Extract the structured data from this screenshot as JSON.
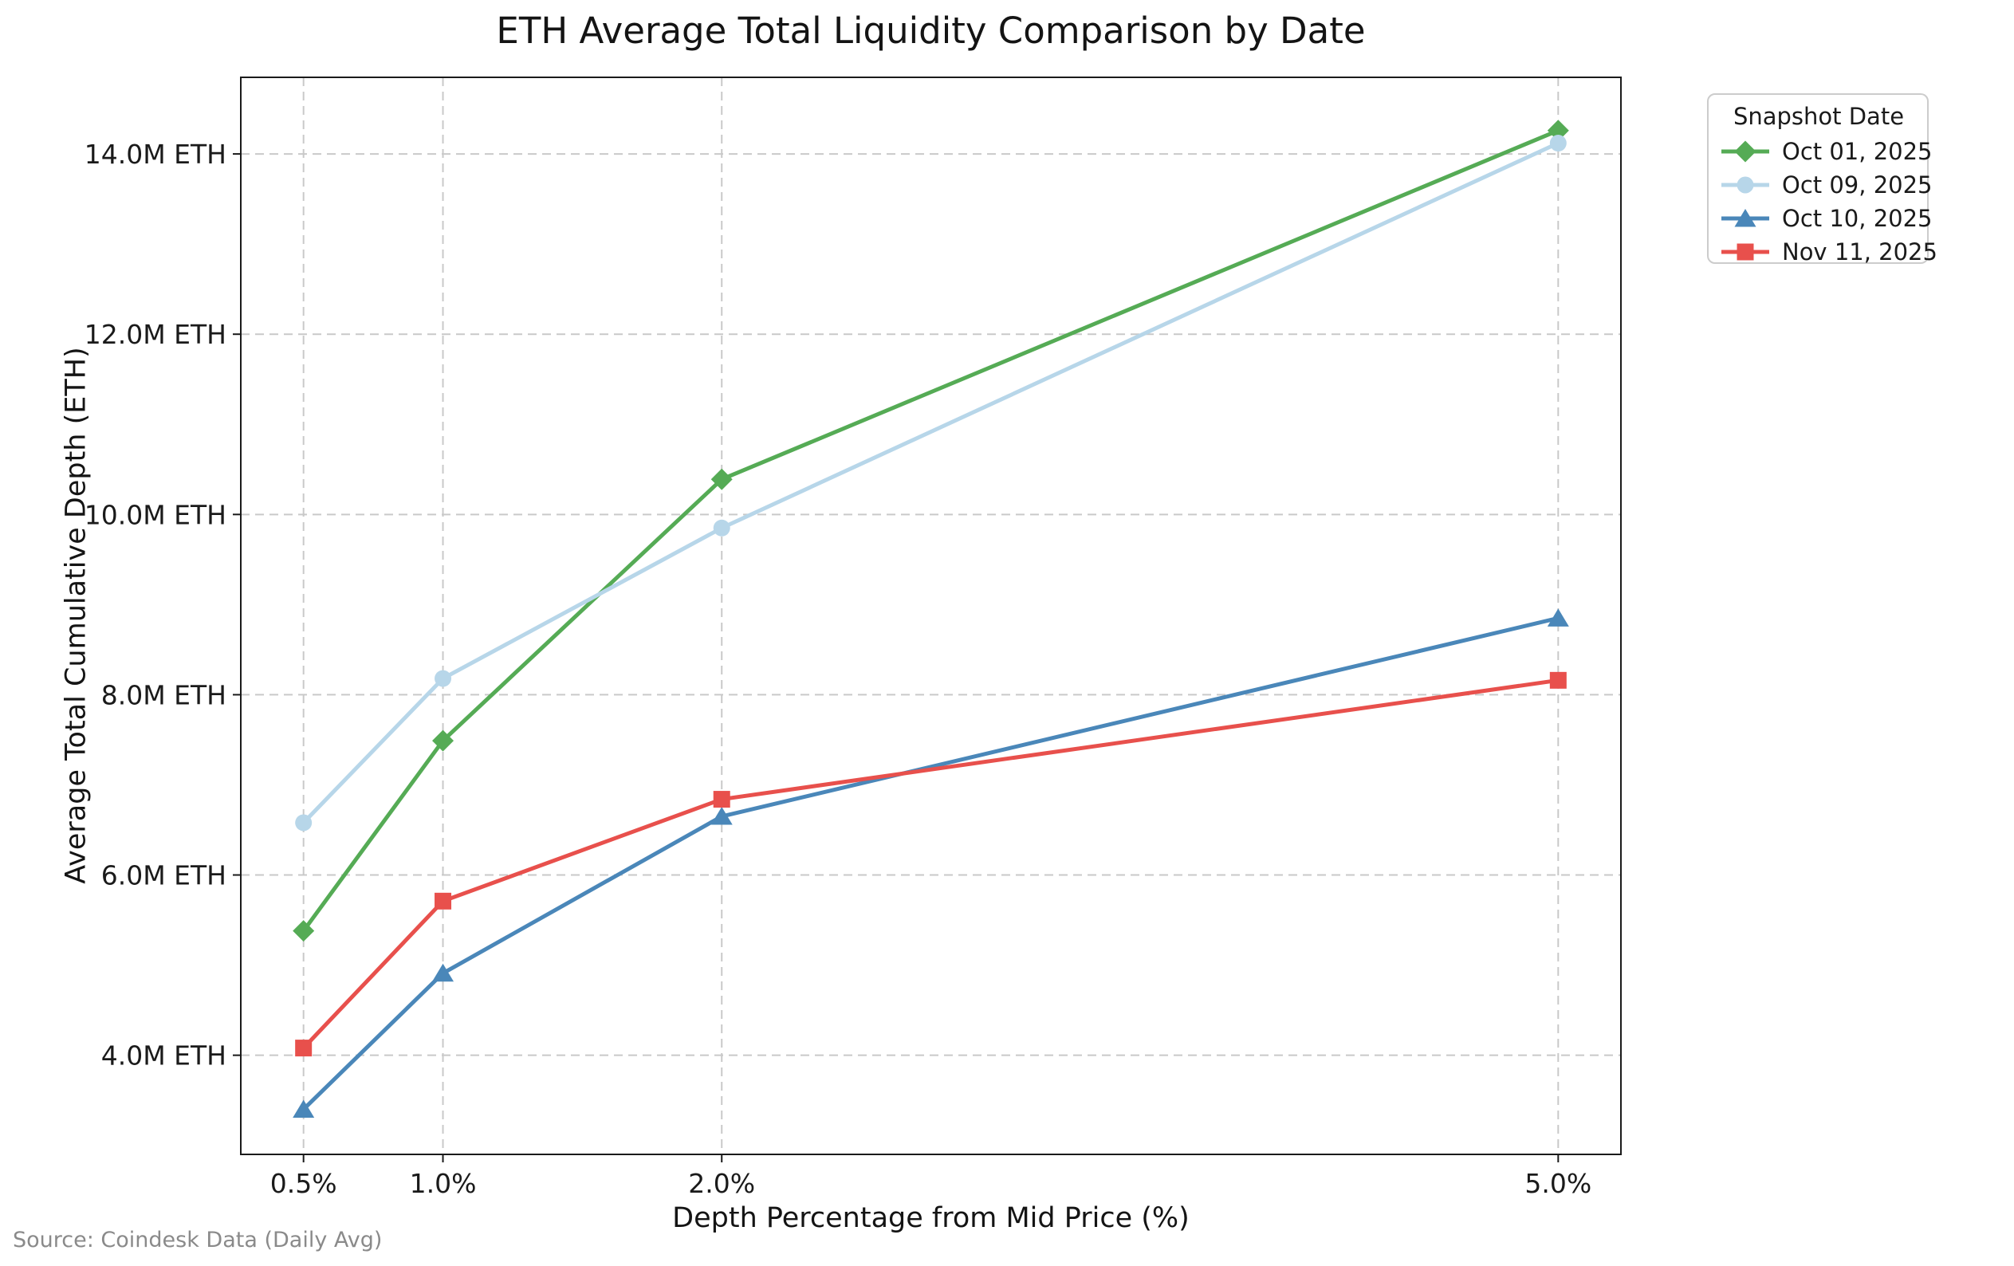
{
  "page": {
    "source_note": "Source: Coindesk Data (Daily Avg)"
  },
  "legend": {
    "title": "Snapshot Date",
    "position": "upper right, outside plot"
  },
  "colors": {
    "grid": "#c9c9c9",
    "spine": "#1a1a1a",
    "legend_border": "#cccccc",
    "source_text": "#8a8a8a",
    "background": "#ffffff"
  },
  "chart_data": {
    "type": "line",
    "title": "ETH Average Total Liquidity Comparison by Date",
    "xlabel": "Depth Percentage from Mid Price (%)",
    "ylabel": "Average Total Cumulative Depth (ETH)",
    "unit": "M ETH",
    "x": [
      0.5,
      1.0,
      2.0,
      5.0
    ],
    "x_tick_labels": [
      "0.5%",
      "1.0%",
      "2.0%",
      "5.0%"
    ],
    "y_ticks": [
      4,
      6,
      8,
      10,
      12,
      14
    ],
    "y_tick_labels": [
      "4.0M ETH",
      "6.0M ETH",
      "8.0M ETH",
      "10.0M ETH",
      "12.0M ETH",
      "14.0M ETH"
    ],
    "xlim": [
      0.275,
      5.225
    ],
    "ylim": [
      2.9,
      14.85
    ],
    "grid": true,
    "legend_title": "Snapshot Date",
    "series": [
      {
        "name": "Oct 01, 2025",
        "color": "#55ab55",
        "marker": "diamond",
        "values": [
          5.38,
          7.49,
          10.39,
          14.26
        ]
      },
      {
        "name": "Oct 09, 2025",
        "color": "#b7d6e9",
        "marker": "circle",
        "values": [
          6.58,
          8.18,
          9.85,
          14.12
        ]
      },
      {
        "name": "Oct 10, 2025",
        "color": "#4a87b9",
        "marker": "triangle-up",
        "values": [
          3.4,
          4.91,
          6.65,
          8.85
        ]
      },
      {
        "name": "Nov 11, 2025",
        "color": "#e8504c",
        "marker": "square",
        "values": [
          4.08,
          5.71,
          6.84,
          8.16
        ]
      }
    ]
  }
}
